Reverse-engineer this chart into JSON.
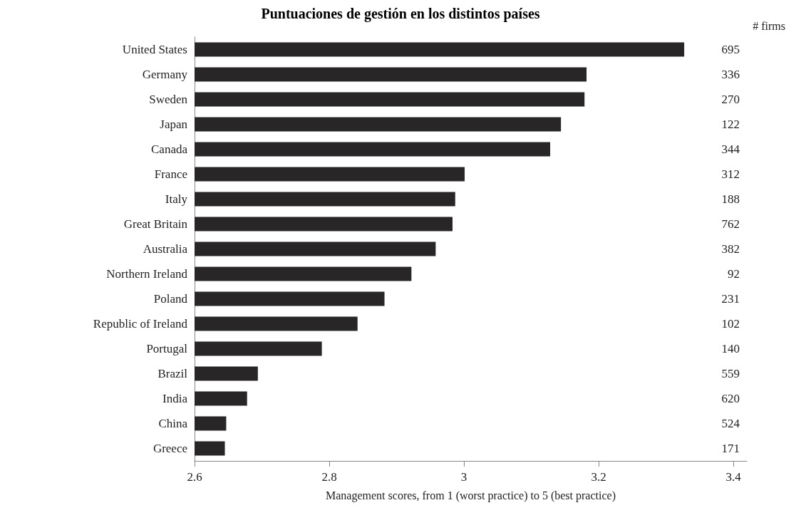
{
  "chart_data": {
    "type": "bar",
    "orientation": "horizontal",
    "title": "Puntuaciones de gestión en los distintos países",
    "xlabel": "Management scores, from 1 (worst practice) to 5 (best practice)",
    "categories": [
      "United States",
      "Germany",
      "Sweden",
      "Japan",
      "Canada",
      "France",
      "Italy",
      "Great Britain",
      "Australia",
      "Northern Ireland",
      "Poland",
      "Republic of Ireland",
      "Portugal",
      "Brazil",
      "India",
      "China",
      "Greece"
    ],
    "values": [
      3.327,
      3.182,
      3.179,
      3.144,
      3.128,
      3.001,
      2.987,
      2.983,
      2.958,
      2.922,
      2.882,
      2.842,
      2.789,
      2.694,
      2.678,
      2.647,
      2.645
    ],
    "color": "#282627",
    "xlim": [
      2.6,
      3.42
    ],
    "xticks": [
      2.6,
      2.8,
      3,
      3.2,
      3.4
    ],
    "grid": false,
    "annotations": [
      "# firms",
      "695",
      "336",
      "270",
      "122",
      "344",
      "312",
      "188",
      "762",
      "382",
      "92",
      "231",
      "102",
      "140",
      "559",
      "620",
      "524",
      "171"
    ]
  }
}
